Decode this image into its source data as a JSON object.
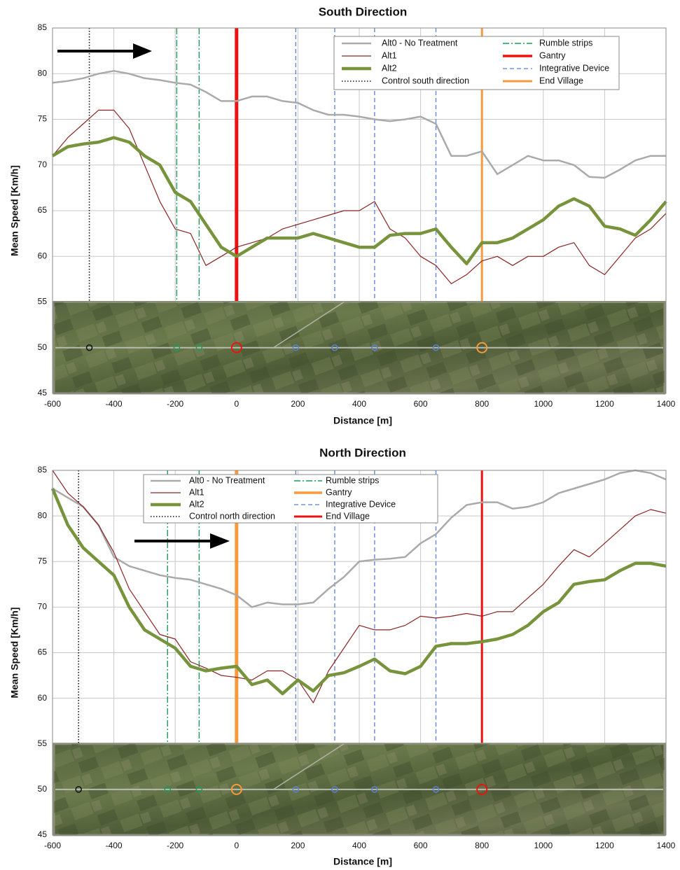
{
  "chart_data": [
    {
      "type": "line",
      "title": "South Direction",
      "x_label": "Distance [m]",
      "y_label": "Mean Speed [Km/h]",
      "x": [
        -600,
        -550,
        -500,
        -450,
        -400,
        -350,
        -300,
        -250,
        -200,
        -150,
        -100,
        -50,
        0,
        50,
        100,
        150,
        200,
        250,
        300,
        350,
        400,
        450,
        500,
        550,
        600,
        650,
        700,
        750,
        800,
        850,
        900,
        950,
        1000,
        1050,
        1100,
        1150,
        1200,
        1250,
        1300,
        1350,
        1400
      ],
      "xlim": [
        -600,
        1400
      ],
      "ylim": [
        45,
        85
      ],
      "xticks": [
        -600,
        -400,
        -200,
        0,
        200,
        400,
        600,
        800,
        1000,
        1200,
        1400
      ],
      "yticks": [
        45,
        50,
        55,
        60,
        65,
        70,
        75,
        80,
        85
      ],
      "grid": true,
      "series": [
        {
          "name": "Alt0 - No Treatment",
          "color": "#aaaaaa",
          "values": [
            79,
            79.2,
            79.5,
            80,
            80.3,
            80,
            79.5,
            79.3,
            79,
            78.8,
            78,
            77,
            77,
            77.5,
            77.5,
            77,
            76.8,
            76,
            75.5,
            75.5,
            75.3,
            75,
            74.8,
            75,
            75.3,
            74.5,
            71,
            71,
            71.5,
            69,
            70,
            71,
            70.5,
            70.5,
            70,
            68.7,
            68.6,
            69.5,
            70.5,
            71,
            71
          ]
        },
        {
          "name": "Alt1",
          "color": "#8b2323",
          "values": [
            71,
            73,
            74.5,
            76,
            76,
            74,
            70,
            66,
            63,
            62.5,
            59,
            60,
            61,
            61.5,
            62,
            63,
            63.5,
            64,
            64.5,
            65,
            65,
            66,
            63,
            62,
            60,
            59,
            57,
            58,
            59.5,
            60,
            59,
            60,
            60,
            61,
            61.5,
            59,
            58,
            60,
            62,
            63,
            64.7
          ]
        },
        {
          "name": "Alt2",
          "color": "#77933c",
          "values": [
            71,
            72,
            72.3,
            72.5,
            73,
            72.5,
            71,
            70,
            67,
            66,
            63.5,
            61,
            60,
            61,
            62,
            62,
            62,
            62.5,
            62,
            61.5,
            61,
            61,
            62.3,
            62.5,
            62.5,
            63,
            61,
            59.2,
            61.5,
            61.5,
            62,
            63,
            64,
            65.5,
            66.3,
            65.5,
            63.3,
            63,
            62.3,
            64,
            66
          ]
        }
      ],
      "markers": [
        {
          "name": "Control south direction",
          "color": "#111111",
          "style": "dotted",
          "positions": [
            -480
          ]
        },
        {
          "name": "Rumble strips",
          "color": "#1e9a5a",
          "style": "dashdot",
          "positions": [
            -195,
            -122
          ]
        },
        {
          "name": "Gantry",
          "color": "#ee1111",
          "style": "solid-thick",
          "positions": [
            0
          ]
        },
        {
          "name": "Integrative Device",
          "color": "#5b7fd6",
          "style": "dashed",
          "positions": [
            193,
            320,
            450,
            650
          ]
        },
        {
          "name": "End Village",
          "color": "#f79a3e",
          "style": "solid",
          "positions": [
            800
          ]
        }
      ]
    },
    {
      "type": "line",
      "title": "North Direction",
      "x_label": "Distance [m]",
      "y_label": "Mean Speed [Km/h]",
      "x": [
        -600,
        -550,
        -500,
        -450,
        -400,
        -350,
        -300,
        -250,
        -200,
        -150,
        -100,
        -50,
        0,
        50,
        100,
        150,
        200,
        250,
        300,
        350,
        400,
        450,
        500,
        550,
        600,
        650,
        700,
        750,
        800,
        850,
        900,
        950,
        1000,
        1050,
        1100,
        1150,
        1200,
        1250,
        1300,
        1350,
        1400
      ],
      "xlim": [
        -600,
        1400
      ],
      "ylim": [
        45,
        85
      ],
      "xticks": [
        -600,
        -400,
        -200,
        0,
        200,
        400,
        600,
        800,
        1000,
        1200,
        1400
      ],
      "yticks": [
        45,
        50,
        55,
        60,
        65,
        70,
        75,
        80,
        85
      ],
      "grid": true,
      "series": [
        {
          "name": "Alt0 - No Treatment",
          "color": "#aaaaaa",
          "values": [
            83,
            82,
            81,
            79,
            75.5,
            74.5,
            74,
            73.5,
            73.2,
            73,
            72.5,
            72,
            71.3,
            70,
            70.5,
            70.3,
            70.3,
            70.5,
            72,
            73.3,
            75,
            75.2,
            75.3,
            75.5,
            77,
            78,
            79.8,
            81.2,
            81.5,
            81.5,
            80.8,
            81,
            81.5,
            82.5,
            83,
            83.5,
            84,
            84.7,
            85,
            84.7,
            84
          ]
        },
        {
          "name": "Alt1",
          "color": "#8b2323",
          "values": [
            85,
            82.5,
            81,
            79,
            76,
            72,
            69.5,
            67,
            66.5,
            64,
            63.3,
            62.5,
            62.3,
            62,
            63,
            63,
            62,
            59.5,
            63,
            65.5,
            68,
            67.5,
            67.5,
            68,
            69,
            68.8,
            69,
            69.3,
            69,
            69.5,
            69.5,
            71,
            72.5,
            74.5,
            76.3,
            75.5,
            77,
            78.5,
            80,
            80.7,
            80.3
          ]
        },
        {
          "name": "Alt2",
          "color": "#77933c",
          "values": [
            83,
            79,
            76.5,
            75,
            73.5,
            70,
            67.5,
            66.5,
            65.5,
            63.5,
            63,
            63.3,
            63.5,
            61.5,
            62,
            60.5,
            62,
            60.8,
            62.5,
            62.8,
            63.5,
            64.3,
            63,
            62.7,
            63.5,
            65.7,
            66,
            66,
            66.2,
            66.5,
            67,
            68,
            69.5,
            70.5,
            72.5,
            72.8,
            73,
            74,
            74.8,
            74.8,
            74.5
          ]
        }
      ],
      "markers": [
        {
          "name": "Control north direction",
          "color": "#111111",
          "style": "dotted",
          "positions": [
            -515
          ]
        },
        {
          "name": "Rumble strips",
          "color": "#1e9a5a",
          "style": "dashdot",
          "positions": [
            -225,
            -122
          ]
        },
        {
          "name": "Gantry",
          "color": "#f79a3e",
          "style": "solid-thick",
          "positions": [
            0
          ]
        },
        {
          "name": "Integrative Device",
          "color": "#5b7fd6",
          "style": "dashed",
          "positions": [
            193,
            320,
            450,
            650
          ]
        },
        {
          "name": "End Village",
          "color": "#ee1111",
          "style": "solid",
          "positions": [
            800
          ]
        }
      ]
    }
  ]
}
